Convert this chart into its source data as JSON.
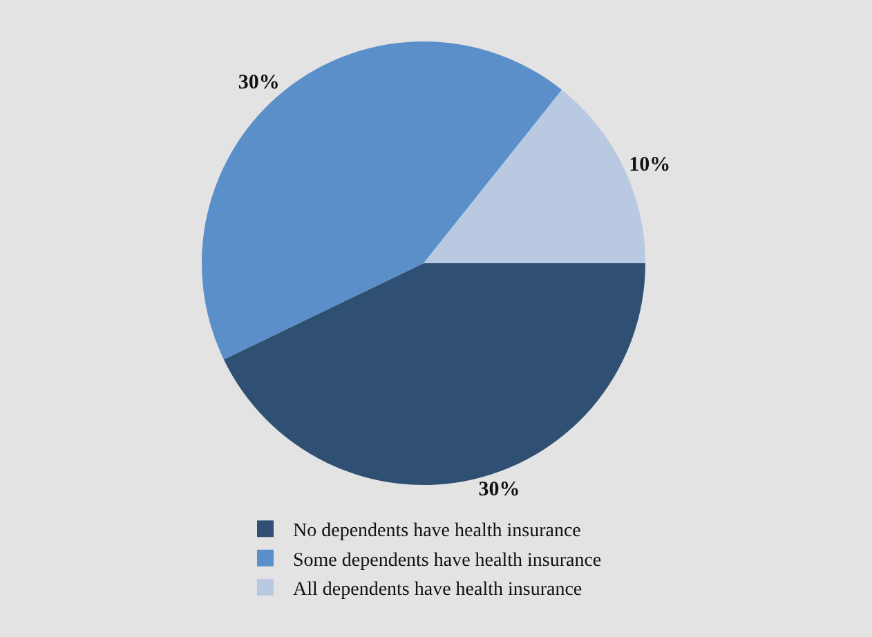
{
  "chart_data": {
    "type": "pie",
    "categories": [
      "No dependents have health insurance",
      "Some dependents have health insurance",
      "All dependents have health insurance"
    ],
    "values": [
      30,
      30,
      10
    ],
    "value_labels": [
      "30%",
      "30%",
      "10%"
    ],
    "colors": [
      "#2f5073",
      "#5b8fc9",
      "#b9c9e2"
    ],
    "legend": "bottom"
  }
}
